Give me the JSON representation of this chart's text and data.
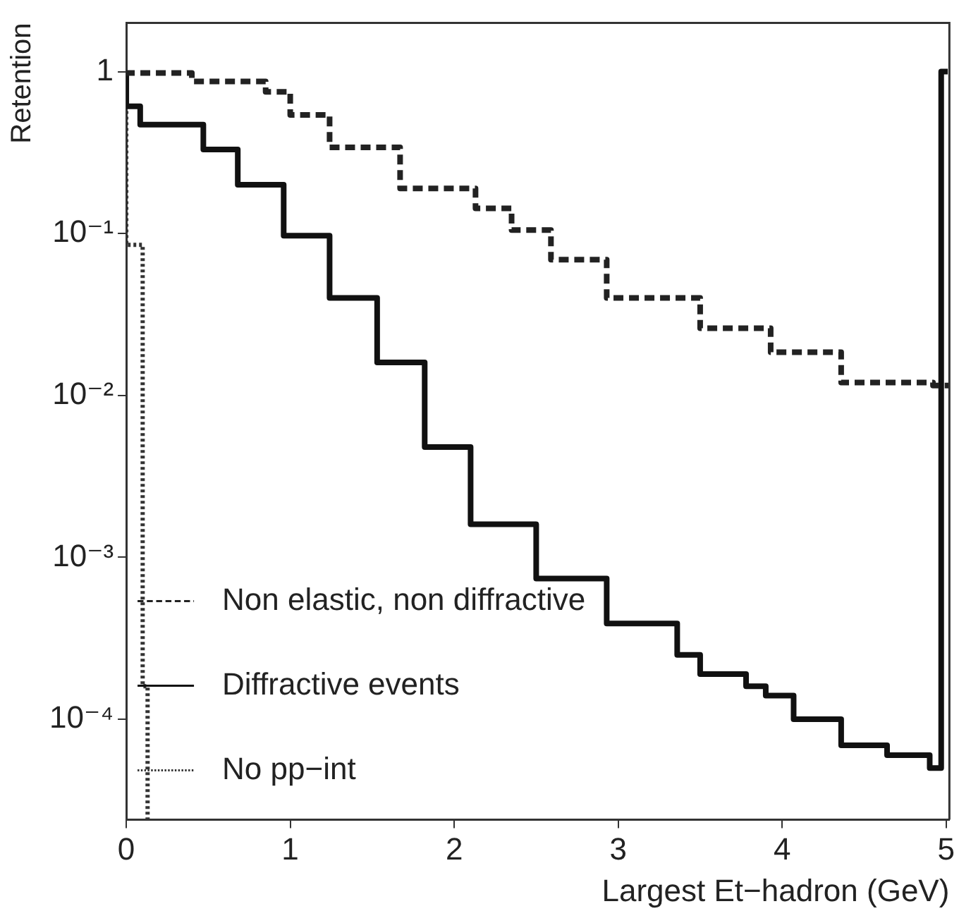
{
  "chart_data": {
    "type": "step",
    "xlabel": "Largest Et−hadron (GeV)",
    "ylabel": "Retention",
    "log": "y",
    "grid": false,
    "legend": "bottom left",
    "xlim": [
      0,
      5.02
    ],
    "ylim": [
      2.4e-05,
      2
    ],
    "xticks": [
      0,
      1,
      2,
      3,
      4,
      5
    ],
    "yticks": [
      {
        "value": 0.0001,
        "label": "10⁻⁴"
      },
      {
        "value": 0.001,
        "label": "10⁻³"
      },
      {
        "value": 0.01,
        "label": "10⁻²"
      },
      {
        "value": 0.1,
        "label": "10⁻¹"
      },
      1
    ],
    "series": [
      {
        "name": "Non elastic, non diffractive",
        "color": "#222222",
        "line_style": "dashed",
        "x": [
          0,
          0.4,
          0.85,
          1.0,
          1.24,
          1.67,
          2.13,
          2.35,
          2.59,
          2.93,
          3.5,
          3.93,
          4.36,
          4.92,
          5.02
        ],
        "values": [
          1.0,
          0.98,
          0.87,
          0.75,
          0.54,
          0.34,
          0.19,
          0.143,
          0.105,
          0.069,
          0.04,
          0.026,
          0.0185,
          0.012,
          0.0115
        ]
      },
      {
        "name": "Diffractive events",
        "color": "#111111",
        "line_style": "solid",
        "x": [
          0,
          0.085,
          0.47,
          0.68,
          0.96,
          1.24,
          1.53,
          1.82,
          2.1,
          2.5,
          2.93,
          3.36,
          3.5,
          3.78,
          3.9,
          4.07,
          4.36,
          4.64,
          4.9,
          4.97,
          5.01
        ],
        "values": [
          1.0,
          0.61,
          0.47,
          0.33,
          0.2,
          0.097,
          0.04,
          0.016,
          0.0048,
          0.0016,
          0.00074,
          0.00039,
          0.00025,
          0.00019,
          0.00016,
          0.00014,
          0.0001,
          6.9e-05,
          6e-05,
          5e-05,
          1.0
        ]
      },
      {
        "name": "No pp−int",
        "color": "#333333",
        "line_style": "dotted",
        "x": [
          0,
          0.1,
          0.13,
          0.15
        ],
        "values": [
          1.0,
          0.085,
          0.00016,
          2.4e-05
        ]
      }
    ]
  }
}
